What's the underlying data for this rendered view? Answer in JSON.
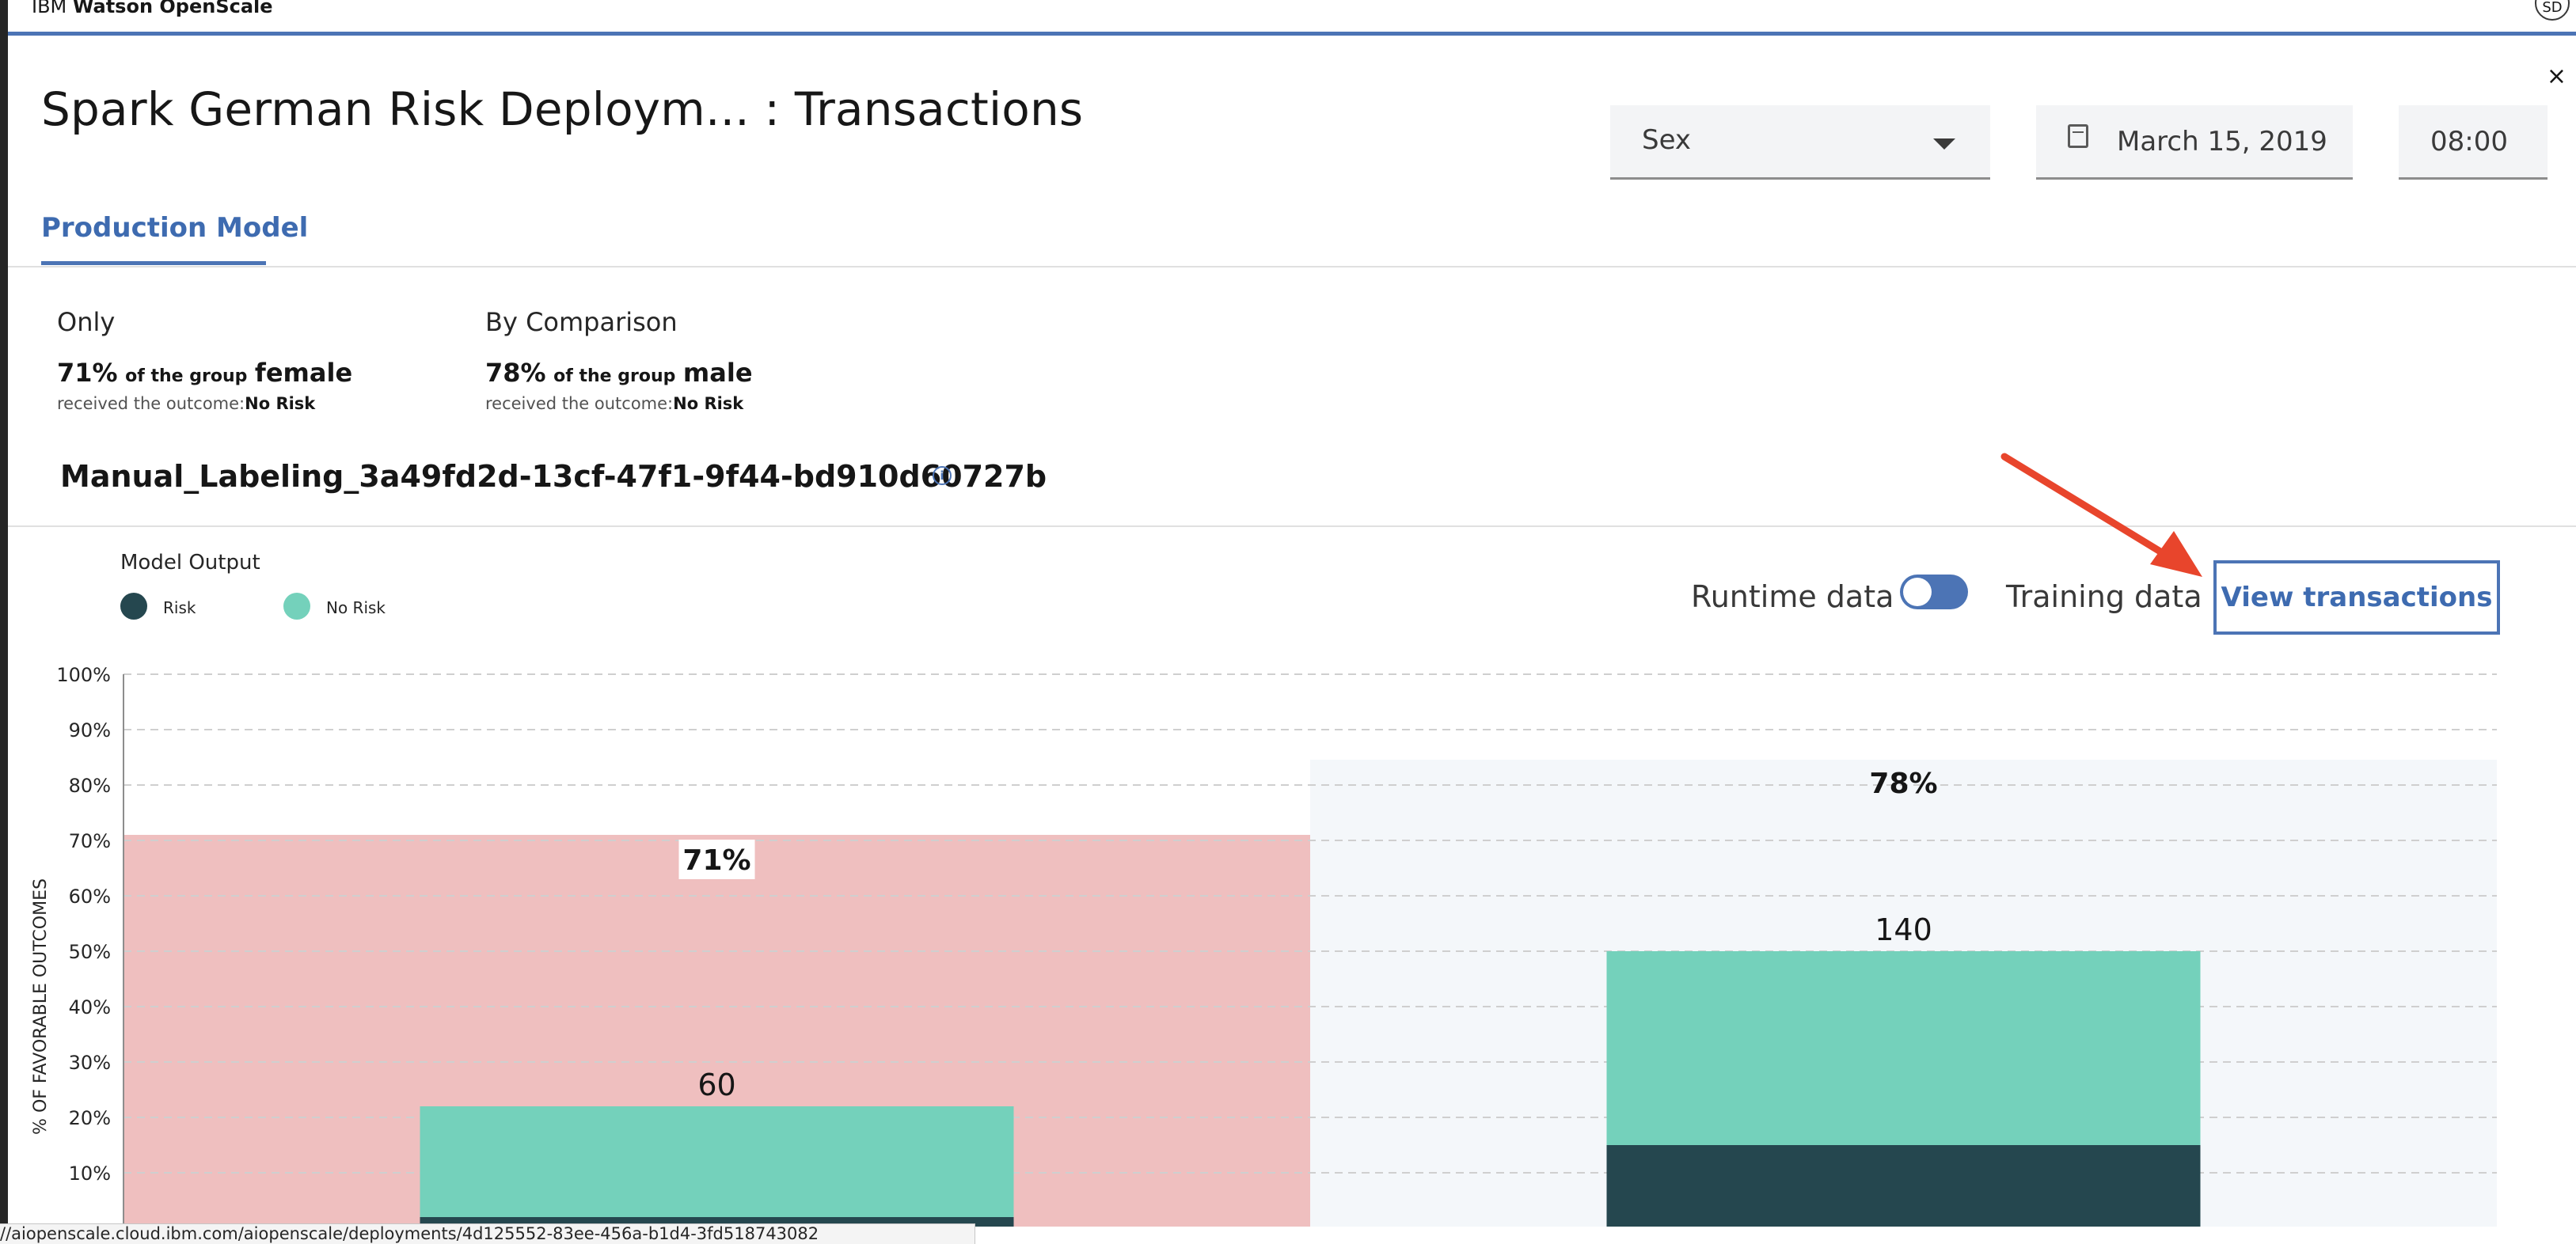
{
  "app": {
    "brand_prefix": "IBM",
    "brand_name": "Watson OpenScale",
    "avatar_initials": "SD"
  },
  "header": {
    "title": "Spark German Risk Deploym... : Transactions",
    "close_label": "×",
    "feature_select": "Sex",
    "date": "March 15, 2019",
    "time": "08:00"
  },
  "tabs": [
    {
      "label": "Production Model",
      "active": true
    }
  ],
  "comparison": {
    "monitored": {
      "heading": "Only",
      "percent": "71%",
      "of_group": "of the group",
      "group": "female",
      "received": "received the outcome:",
      "outcome": "No Risk"
    },
    "reference": {
      "heading": "By Comparison",
      "percent": "78%",
      "of_group": "of the group",
      "group": "male",
      "received": "received the outcome:",
      "outcome": "No Risk"
    }
  },
  "attribute": {
    "name": "Manual_Labeling_3a49fd2d-13cf-47f1-9f44-bd910d60727b",
    "info_icon": "info-icon"
  },
  "legend": {
    "title": "Model Output",
    "items": [
      {
        "label": "Risk",
        "color": "#25474f"
      },
      {
        "label": "No Risk",
        "color": "#74d1bb"
      }
    ]
  },
  "data_toggle": {
    "left_label": "Runtime data",
    "right_label": "Training data",
    "state": "training"
  },
  "view_button": "View transactions",
  "colors": {
    "accent": "#4c74b5",
    "monitored_bg": "#efbfbf",
    "reference_bg": "#f4f7fa",
    "annotation_arrow": "#e8452c"
  },
  "chart_data": {
    "type": "bar",
    "stacked": true,
    "ylabel": "% OF FAVORABLE OUTCOMES",
    "yticks": [
      "10%",
      "20%",
      "30%",
      "40%",
      "50%",
      "60%",
      "70%",
      "80%",
      "90%",
      "100%"
    ],
    "ylim": [
      0,
      100
    ],
    "grid": true,
    "groups": [
      {
        "name": "female",
        "favorable_pct": 71,
        "favorable_label": "71%",
        "count": 60,
        "series": {
          "Risk": 2,
          "No Risk": 20
        }
      },
      {
        "name": "male",
        "favorable_pct": 78,
        "favorable_label": "78%",
        "count": 140,
        "series": {
          "Risk": 15,
          "No Risk": 35
        }
      }
    ]
  },
  "status_url": "//aiopenscale.cloud.ibm.com/aiopenscale/deployments/4d125552-83ee-456a-b1d4-3fd518743082"
}
